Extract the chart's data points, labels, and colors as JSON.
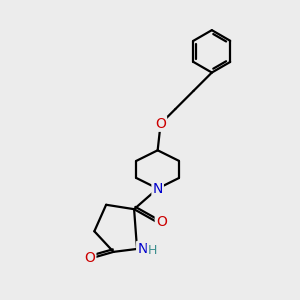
{
  "bg_color": "#ececec",
  "bond_color": "#000000",
  "n_color": "#0000cc",
  "o_color": "#cc0000",
  "h_color": "#3d8f8f",
  "line_width": 1.6,
  "font_size_atom": 10,
  "xlim": [
    0,
    10
  ],
  "ylim": [
    0,
    10
  ]
}
